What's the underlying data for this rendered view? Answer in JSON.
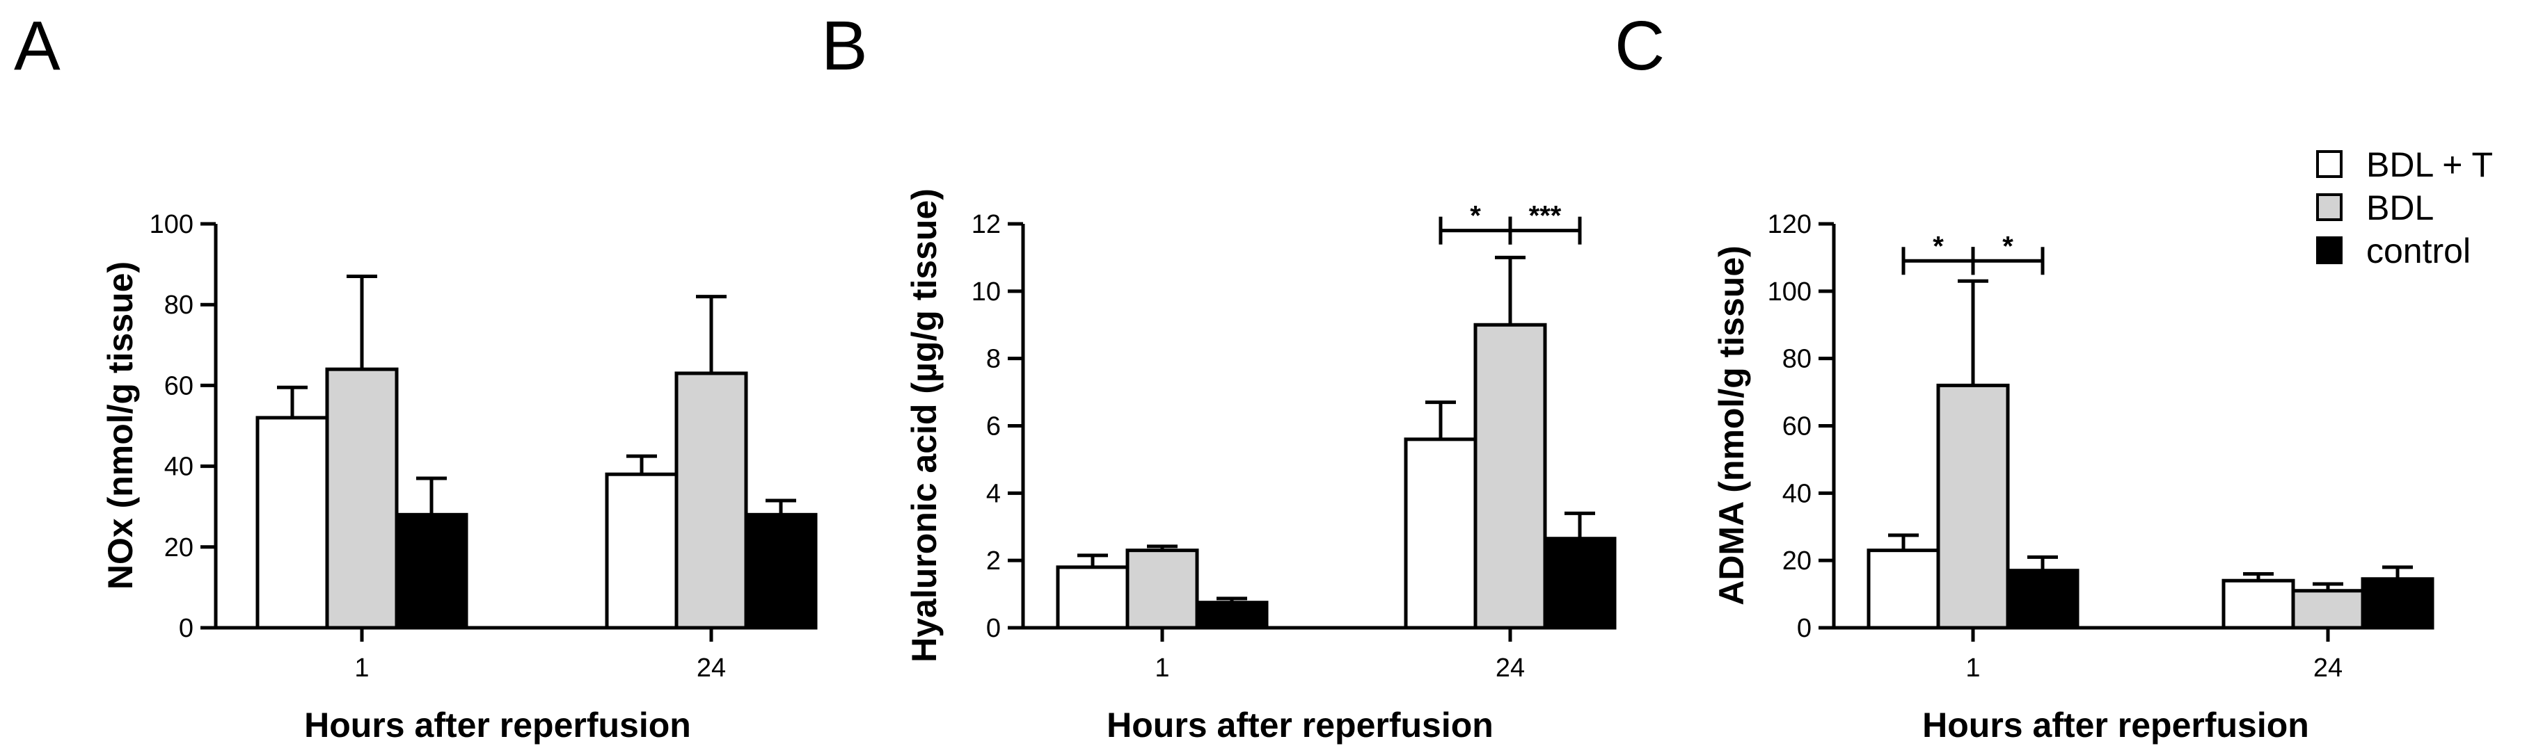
{
  "chart_data": [
    {
      "panel": "A",
      "type": "bar",
      "categories": [
        "1",
        "24"
      ],
      "xlabel": "Hours after reperfusion",
      "ylabel": "NOx (nmol/g tissue)",
      "ylim": [
        0,
        100
      ],
      "yticks": [
        0,
        20,
        40,
        60,
        80,
        100
      ],
      "series": [
        {
          "name": "BDL + T",
          "values": [
            52,
            38
          ],
          "errors": [
            7.5,
            4.5
          ]
        },
        {
          "name": "BDL",
          "values": [
            64,
            63
          ],
          "errors": [
            23,
            19
          ]
        },
        {
          "name": "control",
          "values": [
            28,
            28
          ],
          "errors": [
            9,
            3.5
          ]
        }
      ],
      "significance": []
    },
    {
      "panel": "B",
      "type": "bar",
      "categories": [
        "1",
        "24"
      ],
      "xlabel": "Hours after reperfusion",
      "ylabel": "Hyaluronic acid (µg/g tissue)",
      "ylim": [
        0,
        12
      ],
      "yticks": [
        0,
        2,
        4,
        6,
        8,
        10,
        12
      ],
      "series": [
        {
          "name": "BDL + T",
          "values": [
            1.8,
            5.6
          ],
          "errors": [
            0.35,
            1.1
          ]
        },
        {
          "name": "BDL",
          "values": [
            2.3,
            9.0
          ],
          "errors": [
            0.12,
            2.0
          ]
        },
        {
          "name": "control",
          "values": [
            0.75,
            2.65
          ],
          "errors": [
            0.12,
            0.75
          ]
        }
      ],
      "significance": [
        {
          "category": 1,
          "from": 0,
          "to": 1,
          "label": "*",
          "y": 11.8
        },
        {
          "category": 1,
          "from": 1,
          "to": 2,
          "label": "***",
          "y": 11.8
        }
      ]
    },
    {
      "panel": "C",
      "type": "bar",
      "categories": [
        "1",
        "24"
      ],
      "xlabel": "Hours after reperfusion",
      "ylabel": "ADMA (nmol/g tissue)",
      "ylim": [
        0,
        120
      ],
      "yticks": [
        0,
        20,
        40,
        60,
        80,
        100,
        120
      ],
      "series": [
        {
          "name": "BDL + T",
          "values": [
            23,
            14
          ],
          "errors": [
            4.5,
            2
          ]
        },
        {
          "name": "BDL",
          "values": [
            72,
            11
          ],
          "errors": [
            31,
            2
          ]
        },
        {
          "name": "control",
          "values": [
            17,
            14.5
          ],
          "errors": [
            4,
            3.5
          ]
        }
      ],
      "significance": [
        {
          "category": 0,
          "from": 0,
          "to": 1,
          "label": "*",
          "y": 109
        },
        {
          "category": 0,
          "from": 1,
          "to": 2,
          "label": "*",
          "y": 109
        }
      ]
    }
  ],
  "legend": {
    "position": "top-right",
    "items": [
      {
        "label": "BDL + T",
        "color": "#ffffff"
      },
      {
        "label": "BDL",
        "color": "#d3d3d3"
      },
      {
        "label": "control",
        "color": "#000000"
      }
    ]
  },
  "colors": {
    "BDL + T": "#ffffff",
    "BDL": "#d3d3d3",
    "control": "#000000"
  }
}
